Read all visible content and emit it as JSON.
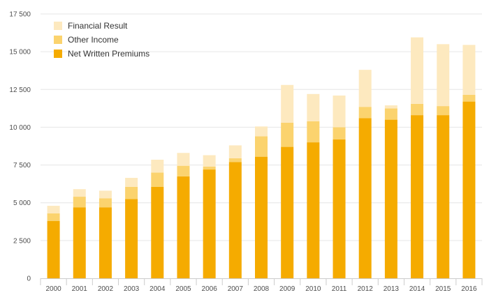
{
  "chart_data": {
    "type": "bar",
    "stacked": true,
    "categories": [
      "2000",
      "2001",
      "2002",
      "2003",
      "2004",
      "2005",
      "2006",
      "2007",
      "2008",
      "2009",
      "2010",
      "2011",
      "2012",
      "2013",
      "2014",
      "2015",
      "2016"
    ],
    "series": [
      {
        "name": "Net Written Premiums",
        "color": "#f5ab00",
        "values": [
          3800,
          4700,
          4700,
          5250,
          6050,
          6750,
          7200,
          7700,
          8050,
          8700,
          9000,
          9200,
          10600,
          10500,
          10800,
          10800,
          11700
        ]
      },
      {
        "name": "Other Income",
        "color": "#fbd36e",
        "values": [
          500,
          700,
          600,
          800,
          950,
          700,
          200,
          250,
          1350,
          1600,
          1400,
          800,
          750,
          750,
          750,
          600,
          450
        ]
      },
      {
        "name": "Financial Result",
        "color": "#fde9bf",
        "values": [
          500,
          500,
          500,
          600,
          850,
          850,
          750,
          850,
          650,
          2500,
          1800,
          2100,
          2450,
          200,
          4400,
          4100,
          3300
        ]
      }
    ],
    "yticks": [
      "0",
      "2 500",
      "5 000",
      "7 500",
      "10 000",
      "12 500",
      "15 000",
      "17 500"
    ],
    "ylim": [
      0,
      17500
    ],
    "grid": true,
    "legend_position": "top-left",
    "legend_order": [
      "Financial Result",
      "Other Income",
      "Net Written Premiums"
    ]
  }
}
